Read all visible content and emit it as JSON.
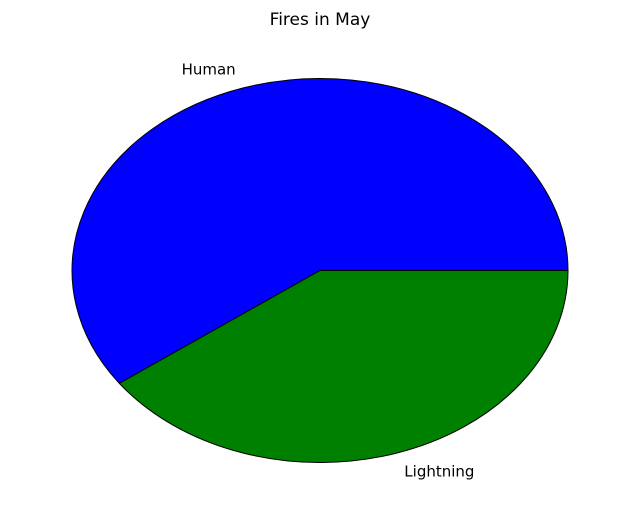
{
  "chart_data": {
    "type": "pie",
    "title": "Fires in May",
    "slices": [
      {
        "label": "Human",
        "value": 60,
        "color": "#0000ff"
      },
      {
        "label": "Lightning",
        "value": 40,
        "color": "#008000"
      }
    ],
    "start_angle_deg": 0,
    "direction": "counterclockwise"
  }
}
